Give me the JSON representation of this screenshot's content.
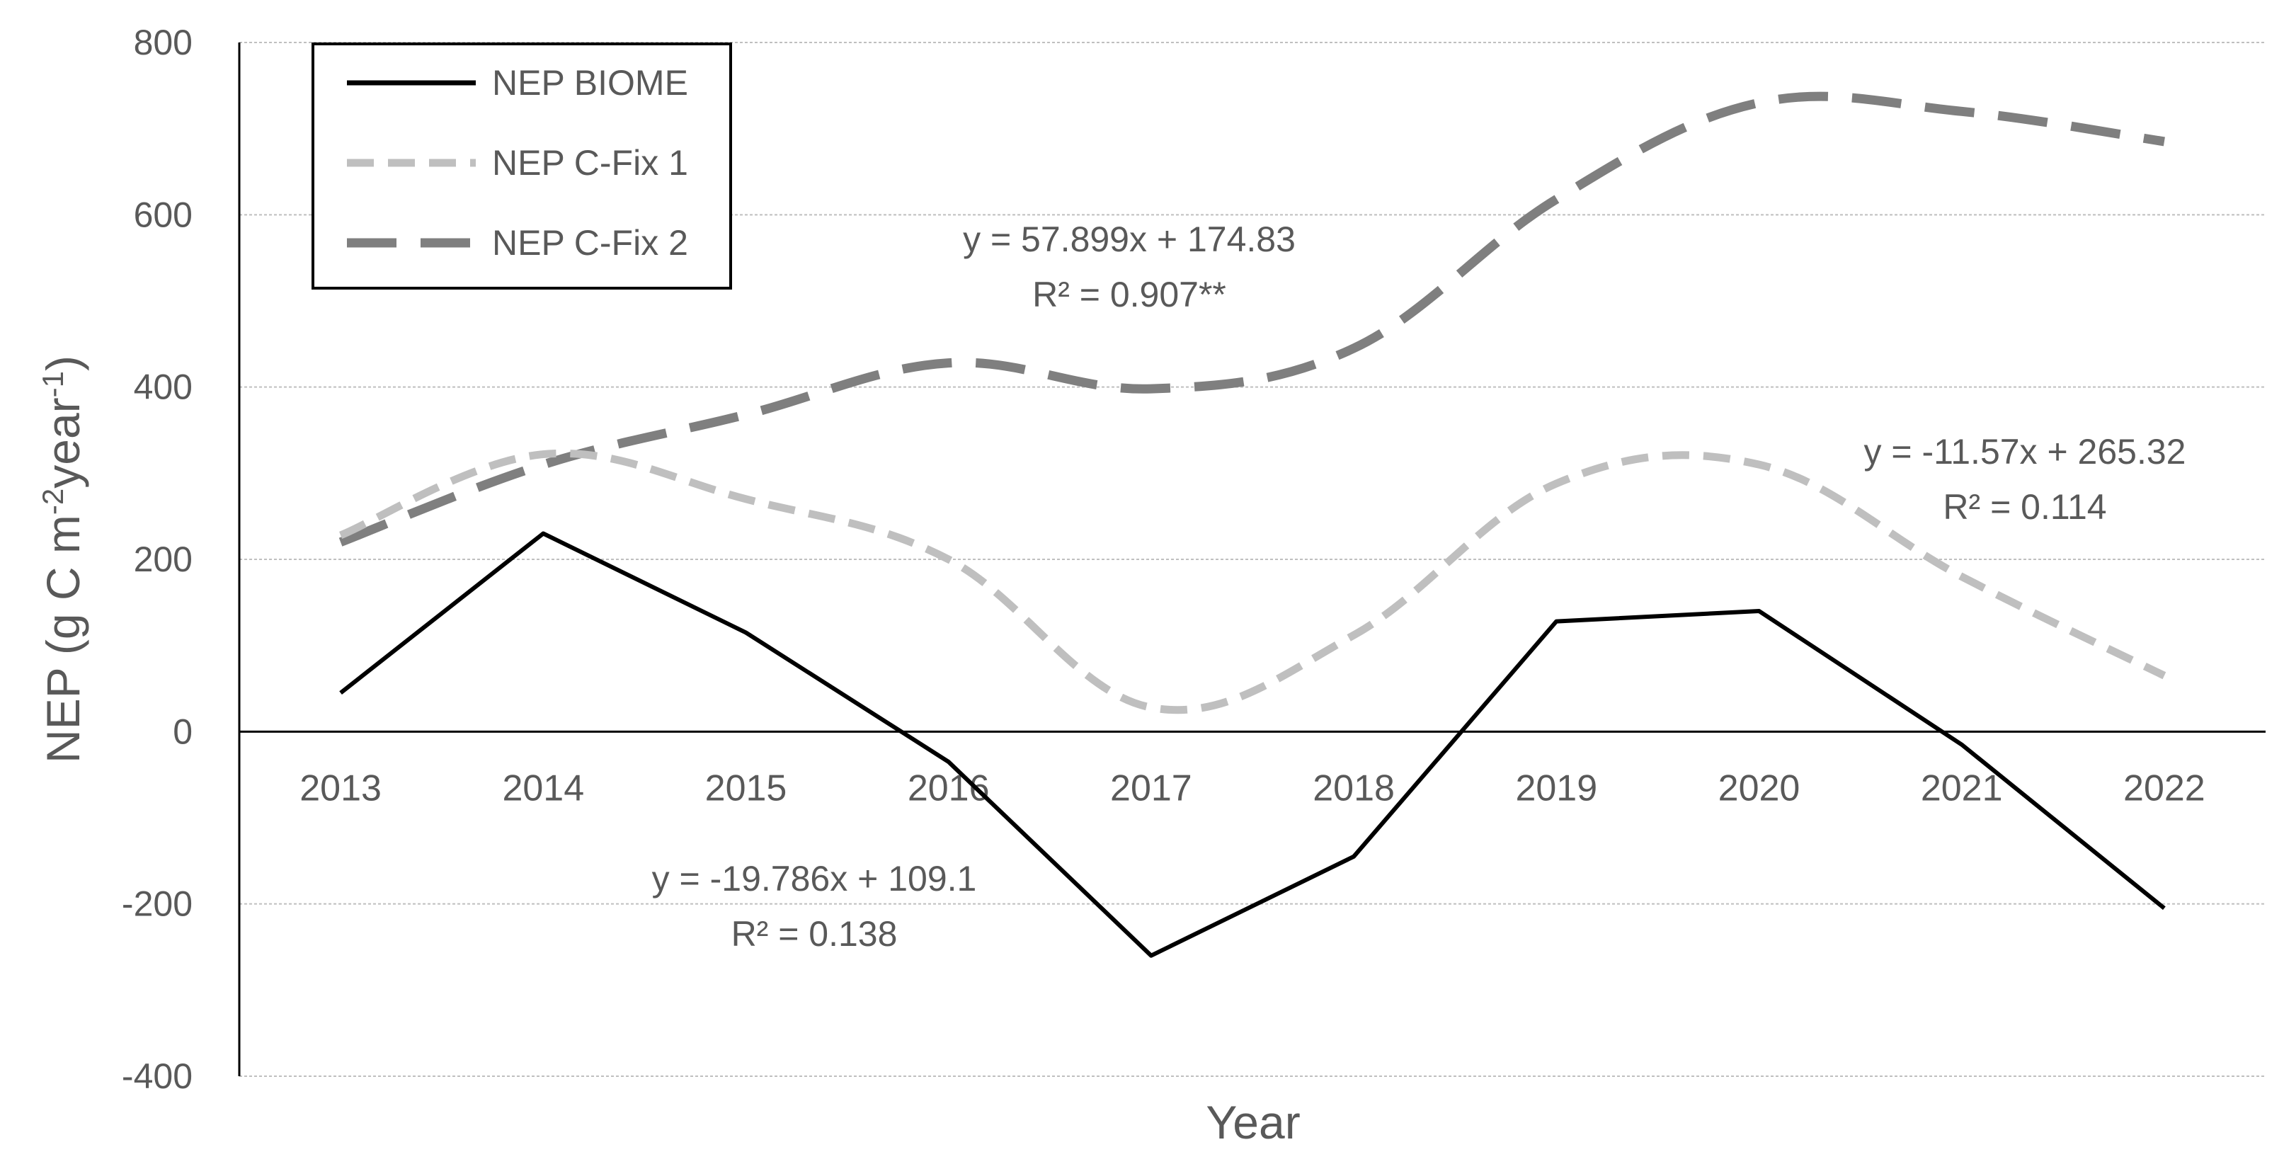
{
  "chart_data": {
    "type": "line",
    "title": "",
    "xlabel": "Year",
    "ylabel": "NEP (g C m-2year-1)",
    "ylabel_parts": {
      "main": "NEP (g C m",
      "sup1": "-2",
      "mid": "year",
      "sup2": "-1",
      "end": ")"
    },
    "ylim": [
      -400,
      800
    ],
    "yticks": [
      "-400",
      "-200",
      "0",
      "200",
      "400",
      "600",
      "800"
    ],
    "categories": [
      "2013",
      "2014",
      "2015",
      "2016",
      "2017",
      "2018",
      "2019",
      "2020",
      "2021",
      "2022"
    ],
    "grid": true,
    "legend_position": "top-left",
    "series": [
      {
        "name": "NEP BIOME",
        "color": "#000000",
        "style": "solid",
        "values": [
          45,
          230,
          115,
          -35,
          -260,
          -145,
          128,
          140,
          -15,
          -205
        ]
      },
      {
        "name": "NEP C-Fix 1",
        "color": "#bfbfbf",
        "style": "dashed-short",
        "values": [
          228,
          322,
          270,
          200,
          28,
          112,
          288,
          310,
          180,
          65
        ]
      },
      {
        "name": "NEP C-Fix 2",
        "color": "#7f7f7f",
        "style": "dashed-long",
        "values": [
          220,
          310,
          368,
          428,
          398,
          445,
          618,
          730,
          720,
          685
        ]
      }
    ],
    "annotations": [
      {
        "equation": "y = 57.899x + 174.83",
        "r2": "R² = 0.907**"
      },
      {
        "equation": "y = -11.57x + 265.32",
        "r2": "R² = 0.114"
      },
      {
        "equation": "y = -19.786x + 109.1",
        "r2": "R² = 0.138"
      }
    ]
  }
}
